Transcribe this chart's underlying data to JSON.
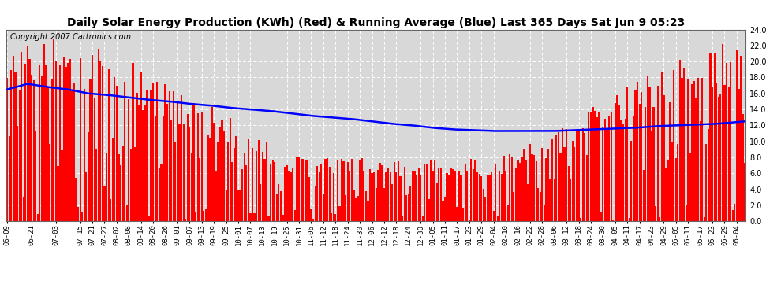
{
  "title": "Daily Solar Energy Production (KWh) (Red) & Running Average (Blue) Last 365 Days Sat Jun 9 05:23",
  "copyright_text": "Copyright 2007 Cartronics.com",
  "ylim": [
    0.0,
    24.0
  ],
  "yticks": [
    0.0,
    2.0,
    4.0,
    6.0,
    8.0,
    10.0,
    12.0,
    14.0,
    16.0,
    18.0,
    20.0,
    22.0,
    24.0
  ],
  "bar_color": "#ff0000",
  "avg_line_color": "#0000ff",
  "background_color": "#ffffff",
  "plot_bg_color": "#d8d8d8",
  "grid_color": "#ffffff",
  "title_fontsize": 10,
  "copyright_fontsize": 7,
  "x_label_fontsize": 6.5,
  "num_days": 365,
  "x_tick_labels": [
    "06-09",
    "06-21",
    "07-03",
    "07-15",
    "07-21",
    "07-27",
    "08-02",
    "08-08",
    "08-14",
    "08-20",
    "08-26",
    "09-01",
    "09-07",
    "09-13",
    "09-19",
    "09-25",
    "10-01",
    "10-07",
    "10-13",
    "10-19",
    "10-25",
    "10-31",
    "11-06",
    "11-12",
    "11-18",
    "11-24",
    "11-30",
    "12-06",
    "12-12",
    "12-18",
    "12-24",
    "12-30",
    "01-05",
    "01-11",
    "01-17",
    "01-23",
    "01-29",
    "02-04",
    "02-10",
    "02-16",
    "02-22",
    "02-28",
    "03-06",
    "03-12",
    "03-18",
    "03-24",
    "03-30",
    "04-05",
    "04-11",
    "04-17",
    "04-23",
    "04-29",
    "05-05",
    "05-11",
    "05-17",
    "05-23",
    "05-29",
    "06-04"
  ],
  "ra_points": [
    [
      0,
      16.5
    ],
    [
      10,
      17.2
    ],
    [
      20,
      16.8
    ],
    [
      30,
      16.5
    ],
    [
      40,
      16.0
    ],
    [
      50,
      15.8
    ],
    [
      60,
      15.5
    ],
    [
      70,
      15.2
    ],
    [
      80,
      15.0
    ],
    [
      90,
      14.7
    ],
    [
      100,
      14.5
    ],
    [
      110,
      14.2
    ],
    [
      120,
      14.0
    ],
    [
      130,
      13.8
    ],
    [
      140,
      13.5
    ],
    [
      150,
      13.2
    ],
    [
      160,
      13.0
    ],
    [
      170,
      12.8
    ],
    [
      180,
      12.5
    ],
    [
      190,
      12.2
    ],
    [
      200,
      12.0
    ],
    [
      210,
      11.7
    ],
    [
      220,
      11.5
    ],
    [
      230,
      11.4
    ],
    [
      240,
      11.3
    ],
    [
      250,
      11.3
    ],
    [
      260,
      11.3
    ],
    [
      270,
      11.3
    ],
    [
      280,
      11.4
    ],
    [
      290,
      11.5
    ],
    [
      300,
      11.6
    ],
    [
      310,
      11.7
    ],
    [
      320,
      11.9
    ],
    [
      330,
      12.0
    ],
    [
      340,
      12.1
    ],
    [
      350,
      12.2
    ],
    [
      364,
      12.5
    ]
  ]
}
